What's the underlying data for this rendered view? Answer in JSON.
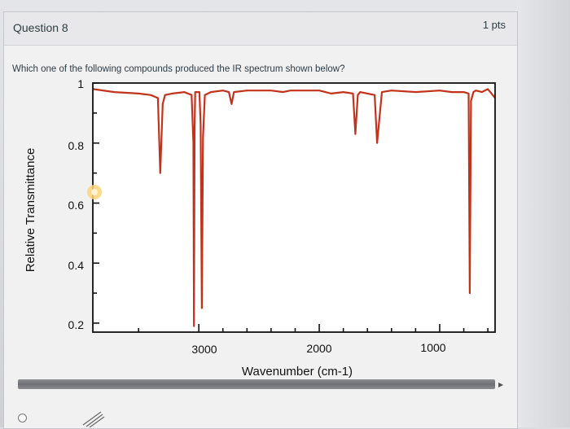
{
  "question": {
    "title": "Question 8",
    "points": "1 pts",
    "prompt": "Which one of the following compounds produced the IR spectrum shown below?"
  },
  "colors": {
    "spectrum_line": "#c4321a",
    "axis": "#111111",
    "card_bg": "#f1f1f2"
  },
  "chart_data": {
    "type": "line",
    "title": "",
    "xlabel": "Wavenumber (cm-1)",
    "ylabel": "Relative Transmittance",
    "xlim": [
      3880,
      540
    ],
    "ylim": [
      0.17,
      1.0
    ],
    "x_axis_reversed": true,
    "x_tick_labels": [
      "3000",
      "2000",
      "1000"
    ],
    "y_tick_labels": [
      "1",
      "0.8",
      "0.6",
      "0.4",
      "0.2"
    ],
    "series": [
      {
        "color": "#c4321a",
        "x": [
          3880,
          3700,
          3500,
          3400,
          3340,
          3320,
          3300,
          3280,
          3220,
          3120,
          3060,
          3045,
          3040,
          3035,
          3030,
          2995,
          2985,
          2975,
          2965,
          2950,
          2900,
          2800,
          2750,
          2728,
          2708,
          2600,
          2400,
          2300,
          2240,
          2160,
          2000,
          1900,
          1800,
          1720,
          1700,
          1680,
          1660,
          1600,
          1540,
          1520,
          1480,
          1400,
          1200,
          1000,
          900,
          800,
          760,
          750,
          740,
          720,
          700,
          650,
          600,
          560,
          540
        ],
        "y": [
          0.98,
          0.97,
          0.965,
          0.96,
          0.95,
          0.7,
          0.93,
          0.96,
          0.965,
          0.97,
          0.96,
          0.8,
          0.19,
          0.85,
          0.97,
          0.97,
          0.86,
          0.25,
          0.82,
          0.96,
          0.97,
          0.975,
          0.97,
          0.93,
          0.97,
          0.975,
          0.975,
          0.97,
          0.975,
          0.975,
          0.975,
          0.965,
          0.97,
          0.965,
          0.83,
          0.96,
          0.97,
          0.965,
          0.96,
          0.8,
          0.97,
          0.975,
          0.97,
          0.975,
          0.97,
          0.97,
          0.965,
          0.3,
          0.94,
          0.97,
          0.975,
          0.97,
          0.98,
          0.96,
          0.95
        ]
      }
    ]
  }
}
